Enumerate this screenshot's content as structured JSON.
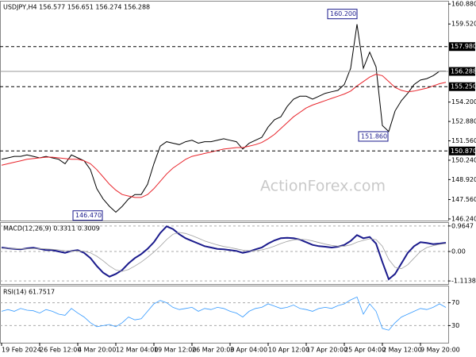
{
  "watermark": "ActionForex.com",
  "chart_data": [
    {
      "type": "line",
      "title": "USDJPY,H4  156.577 156.651 156.274 156.288",
      "ylim": [
        146.13,
        161.1
      ],
      "yticks": [
        {
          "value": 146.24,
          "label": "146.240"
        },
        {
          "value": 147.56,
          "label": "147.560"
        },
        {
          "value": 148.92,
          "label": "148.920"
        },
        {
          "value": 150.24,
          "label": "150.240"
        },
        {
          "value": 151.56,
          "label": "151.560"
        },
        {
          "value": 152.88,
          "label": "152.880"
        },
        {
          "value": 154.2,
          "label": "154.200"
        },
        {
          "value": 159.52,
          "label": "159.520"
        },
        {
          "value": 160.88,
          "label": "160.880"
        }
      ],
      "levels": [
        {
          "value": 157.98,
          "label": "157.980"
        },
        {
          "value": 155.25,
          "label": "155.250"
        },
        {
          "value": 150.87,
          "label": "150.870"
        }
      ],
      "last": 156.288,
      "annotations": [
        {
          "value": 160.2,
          "label": "160.200"
        },
        {
          "value": 151.86,
          "label": "151.860"
        },
        {
          "value": 146.47,
          "label": "146.470"
        }
      ],
      "series": [
        {
          "color": "#000000",
          "values": [
            150.3,
            150.4,
            150.5,
            150.5,
            150.6,
            150.5,
            150.4,
            150.5,
            150.4,
            150.3,
            150.0,
            150.6,
            150.4,
            150.2,
            149.6,
            148.3,
            147.6,
            147.1,
            146.7,
            147.1,
            147.6,
            147.9,
            147.9,
            148.6,
            150.0,
            151.2,
            151.5,
            151.4,
            151.3,
            151.5,
            151.6,
            151.4,
            151.5,
            151.5,
            151.6,
            151.7,
            151.6,
            151.5,
            151.0,
            151.4,
            151.6,
            151.8,
            152.5,
            153.0,
            153.2,
            153.9,
            154.4,
            154.6,
            154.6,
            154.4,
            154.6,
            154.8,
            154.9,
            155.0,
            155.4,
            156.5,
            159.5,
            156.5,
            157.6,
            156.6,
            152.6,
            152.2,
            153.6,
            154.3,
            154.8,
            155.4,
            155.7,
            155.8,
            156.0,
            156.3,
            156.3
          ]
        },
        {
          "color": "#e8242b",
          "values": [
            149.9,
            150.0,
            150.1,
            150.2,
            150.3,
            150.35,
            150.4,
            150.45,
            150.45,
            150.4,
            150.35,
            150.3,
            150.3,
            150.2,
            150.0,
            149.6,
            149.1,
            148.6,
            148.2,
            147.9,
            147.8,
            147.7,
            147.7,
            147.9,
            148.3,
            148.8,
            149.3,
            149.7,
            150.0,
            150.3,
            150.5,
            150.6,
            150.7,
            150.8,
            150.9,
            151.0,
            151.05,
            151.1,
            151.1,
            151.2,
            151.3,
            151.45,
            151.7,
            152.0,
            152.4,
            152.8,
            153.2,
            153.5,
            153.8,
            154.0,
            154.15,
            154.3,
            154.45,
            154.6,
            154.75,
            154.95,
            155.3,
            155.6,
            155.9,
            156.1,
            156.0,
            155.6,
            155.2,
            155.0,
            154.9,
            154.95,
            155.05,
            155.15,
            155.3,
            155.45,
            155.55
          ]
        }
      ]
    },
    {
      "type": "line",
      "title": "MACD(12,26,9) 0.3311 0.3009",
      "ylim": [
        -1.23,
        1.11
      ],
      "grid": true,
      "yticks": [
        -1.1138,
        {
          "value": 0,
          "label": "0.00"
        },
        0.9647
      ],
      "series": [
        {
          "color": "#1a1a8c",
          "values": [
            0.15,
            0.12,
            0.1,
            0.08,
            0.12,
            0.14,
            0.1,
            0.05,
            0.05,
            0.0,
            -0.05,
            0.02,
            0.05,
            -0.05,
            -0.25,
            -0.55,
            -0.8,
            -0.95,
            -0.85,
            -0.7,
            -0.45,
            -0.25,
            -0.1,
            0.1,
            0.35,
            0.7,
            0.95,
            0.85,
            0.65,
            0.5,
            0.4,
            0.3,
            0.2,
            0.15,
            0.1,
            0.08,
            0.05,
            0.02,
            -0.05,
            0.0,
            0.08,
            0.15,
            0.3,
            0.42,
            0.5,
            0.52,
            0.5,
            0.45,
            0.35,
            0.25,
            0.2,
            0.18,
            0.15,
            0.18,
            0.25,
            0.4,
            0.62,
            0.5,
            0.55,
            0.3,
            -0.4,
            -1.05,
            -0.85,
            -0.45,
            -0.05,
            0.2,
            0.35,
            0.32,
            0.28,
            0.3,
            0.33
          ]
        },
        {
          "color": "#a0a0a0",
          "values": [
            0.12,
            0.12,
            0.11,
            0.1,
            0.1,
            0.11,
            0.11,
            0.1,
            0.08,
            0.06,
            0.03,
            0.02,
            0.02,
            0.01,
            -0.05,
            -0.18,
            -0.35,
            -0.55,
            -0.7,
            -0.75,
            -0.68,
            -0.55,
            -0.4,
            -0.22,
            -0.02,
            0.2,
            0.45,
            0.65,
            0.72,
            0.68,
            0.6,
            0.5,
            0.4,
            0.32,
            0.25,
            0.19,
            0.15,
            0.1,
            0.05,
            0.03,
            0.03,
            0.06,
            0.12,
            0.2,
            0.3,
            0.38,
            0.44,
            0.46,
            0.45,
            0.4,
            0.34,
            0.28,
            0.23,
            0.2,
            0.2,
            0.25,
            0.35,
            0.42,
            0.48,
            0.45,
            0.2,
            -0.3,
            -0.6,
            -0.65,
            -0.5,
            -0.25,
            0.0,
            0.15,
            0.22,
            0.27,
            0.3
          ]
        }
      ]
    },
    {
      "type": "line",
      "title": "RSI(14) 61.7517",
      "ylim": [
        0,
        100
      ],
      "grid": true,
      "yticks": [
        30,
        70
      ],
      "categories": [
        "19 Feb 2024",
        null,
        null,
        null,
        null,
        null,
        "26 Feb 12:00",
        null,
        null,
        null,
        null,
        null,
        "4 Mar 20:00",
        null,
        null,
        null,
        null,
        null,
        "12 Mar 04:00",
        null,
        null,
        null,
        null,
        null,
        "19 Mar 12:00",
        null,
        null,
        null,
        null,
        null,
        "26 Mar 20:00",
        null,
        null,
        null,
        null,
        null,
        "3 Apr 04:00",
        null,
        null,
        null,
        null,
        null,
        "10 Apr 12:00",
        null,
        null,
        null,
        null,
        null,
        "17 Apr 20:00",
        null,
        null,
        null,
        null,
        null,
        "25 Apr 04:00",
        null,
        null,
        null,
        null,
        null,
        "2 May 12:00",
        null,
        null,
        null,
        null,
        null,
        "9 May 20:00",
        null,
        null,
        null,
        null
      ],
      "series": [
        {
          "color": "#3399ff",
          "values": [
            55,
            58,
            55,
            60,
            57,
            56,
            52,
            58,
            55,
            50,
            48,
            60,
            52,
            45,
            35,
            28,
            30,
            32,
            28,
            35,
            45,
            40,
            42,
            55,
            68,
            74,
            70,
            62,
            58,
            60,
            62,
            55,
            60,
            58,
            62,
            60,
            55,
            52,
            45,
            55,
            60,
            62,
            68,
            64,
            60,
            62,
            66,
            60,
            58,
            55,
            60,
            62,
            60,
            65,
            68,
            75,
            80,
            50,
            68,
            55,
            25,
            22,
            35,
            45,
            50,
            55,
            60,
            58,
            62,
            68,
            61.75
          ]
        }
      ]
    }
  ]
}
